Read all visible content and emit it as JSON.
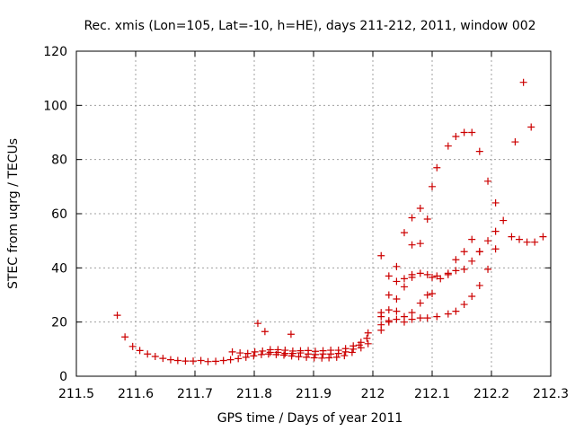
{
  "chart_data": {
    "type": "scatter",
    "title": "Rec. xmis (Lon=105, Lat=-10, h=HE), days 211-212, 2011, window 002",
    "xlabel": "GPS time / Days of year 2011",
    "ylabel": "STEC from uqrg / TECUs",
    "xlim": [
      211.5,
      212.3
    ],
    "ylim": [
      0,
      120
    ],
    "xticks": [
      "211.5",
      "211.6",
      "211.7",
      "211.8",
      "211.9",
      "212",
      "212.1",
      "212.2",
      "212.3"
    ],
    "yticks": [
      "0",
      "20",
      "40",
      "60",
      "80",
      "100",
      "120"
    ],
    "grid": true,
    "marker": "plus",
    "color": "#cc0000",
    "points": [
      [
        211.569,
        22.5
      ],
      [
        211.582,
        14.5
      ],
      [
        211.595,
        11
      ],
      [
        211.607,
        9.5
      ],
      [
        211.62,
        8.2
      ],
      [
        211.633,
        7.3
      ],
      [
        211.646,
        6.6
      ],
      [
        211.659,
        6.1
      ],
      [
        211.671,
        5.8
      ],
      [
        211.684,
        5.6
      ],
      [
        211.697,
        5.6
      ],
      [
        211.71,
        5.8
      ],
      [
        211.722,
        5.4
      ],
      [
        211.735,
        5.5
      ],
      [
        211.748,
        5.8
      ],
      [
        211.76,
        6.1
      ],
      [
        211.773,
        6.5
      ],
      [
        211.786,
        7.0
      ],
      [
        211.799,
        7.5
      ],
      [
        211.812,
        8.0
      ],
      [
        211.824,
        8.2
      ],
      [
        211.837,
        8.0
      ],
      [
        211.85,
        7.8
      ],
      [
        211.863,
        7.5
      ],
      [
        211.875,
        7.2
      ],
      [
        211.888,
        7.0
      ],
      [
        211.901,
        6.8
      ],
      [
        211.914,
        6.7
      ],
      [
        211.926,
        6.8
      ],
      [
        211.939,
        7.0
      ],
      [
        211.952,
        7.6
      ],
      [
        211.965,
        8.8
      ],
      [
        211.977,
        11.5
      ],
      [
        211.99,
        14.0
      ],
      [
        211.763,
        9.0
      ],
      [
        211.776,
        8.6
      ],
      [
        211.789,
        8.4
      ],
      [
        211.801,
        9.0
      ],
      [
        211.814,
        9.3
      ],
      [
        211.827,
        9.8
      ],
      [
        211.84,
        9.8
      ],
      [
        211.852,
        9.6
      ],
      [
        211.865,
        9.3
      ],
      [
        211.878,
        9.4
      ],
      [
        211.891,
        9.5
      ],
      [
        211.903,
        9.2
      ],
      [
        211.916,
        9.4
      ],
      [
        211.929,
        9.6
      ],
      [
        211.942,
        9.6
      ],
      [
        211.954,
        10.2
      ],
      [
        211.967,
        11.2
      ],
      [
        211.98,
        12.5
      ],
      [
        211.992,
        16.0
      ],
      [
        211.827,
        8.8
      ],
      [
        211.84,
        8.8
      ],
      [
        211.852,
        8.4
      ],
      [
        211.865,
        8.4
      ],
      [
        211.878,
        8.6
      ],
      [
        211.891,
        8.2
      ],
      [
        211.903,
        8.0
      ],
      [
        211.916,
        8.2
      ],
      [
        211.929,
        8.2
      ],
      [
        211.942,
        8.4
      ],
      [
        211.954,
        9.0
      ],
      [
        211.967,
        10.0
      ],
      [
        211.98,
        10.5
      ],
      [
        211.992,
        12.0
      ],
      [
        211.806,
        19.5
      ],
      [
        211.818,
        16.5
      ],
      [
        211.862,
        15.5
      ],
      [
        212.014,
        44.5
      ],
      [
        212.027,
        37.0
      ],
      [
        212.04,
        40.5
      ],
      [
        212.053,
        53.0
      ],
      [
        212.066,
        58.5
      ],
      [
        212.08,
        62.0
      ],
      [
        212.092,
        58.0
      ],
      [
        212.1,
        70.0
      ],
      [
        212.108,
        77.0
      ],
      [
        212.127,
        85.0
      ],
      [
        212.14,
        88.5
      ],
      [
        212.154,
        90.0
      ],
      [
        212.167,
        90.0
      ],
      [
        212.18,
        83.0
      ],
      [
        212.194,
        72.0
      ],
      [
        212.207,
        64.0
      ],
      [
        212.22,
        57.5
      ],
      [
        212.234,
        51.5
      ],
      [
        212.247,
        50.5
      ],
      [
        212.26,
        49.5
      ],
      [
        212.273,
        49.5
      ],
      [
        212.287,
        51.5
      ],
      [
        212.014,
        22.0
      ],
      [
        212.027,
        30.0
      ],
      [
        212.04,
        28.5
      ],
      [
        212.053,
        33.0
      ],
      [
        212.066,
        36.5
      ],
      [
        212.066,
        48.5
      ],
      [
        212.08,
        49.0
      ],
      [
        212.092,
        37.5
      ],
      [
        212.1,
        36.5
      ],
      [
        212.108,
        37.0
      ],
      [
        212.127,
        38.0
      ],
      [
        212.14,
        43.0
      ],
      [
        212.154,
        46.0
      ],
      [
        212.167,
        50.5
      ],
      [
        212.18,
        46.0
      ],
      [
        212.194,
        50.0
      ],
      [
        212.207,
        53.5
      ],
      [
        212.014,
        17.0
      ],
      [
        212.027,
        20.0
      ],
      [
        212.04,
        21.0
      ],
      [
        212.053,
        22.0
      ],
      [
        212.066,
        23.5
      ],
      [
        212.08,
        27.0
      ],
      [
        212.092,
        30.0
      ],
      [
        212.1,
        30.5
      ],
      [
        212.114,
        36.0
      ],
      [
        212.127,
        37.5
      ],
      [
        212.14,
        39.0
      ],
      [
        212.154,
        39.5
      ],
      [
        212.167,
        42.5
      ],
      [
        212.18,
        46.0
      ],
      [
        212.194,
        39.5
      ],
      [
        212.207,
        47.0
      ],
      [
        212.014,
        23.5
      ],
      [
        212.027,
        24.5
      ],
      [
        212.04,
        24.0
      ],
      [
        212.053,
        20.0
      ],
      [
        212.066,
        21.0
      ],
      [
        212.08,
        21.5
      ],
      [
        212.092,
        21.5
      ],
      [
        212.108,
        22.0
      ],
      [
        212.127,
        23.0
      ],
      [
        212.14,
        24.0
      ],
      [
        212.154,
        26.5
      ],
      [
        212.167,
        29.5
      ],
      [
        212.18,
        33.5
      ],
      [
        212.014,
        19.0
      ],
      [
        212.027,
        20.5
      ],
      [
        212.04,
        35.0
      ],
      [
        212.053,
        36.0
      ],
      [
        212.066,
        37.5
      ],
      [
        212.08,
        38.0
      ],
      [
        212.24,
        86.5
      ],
      [
        212.254,
        108.5
      ],
      [
        212.267,
        92.0
      ]
    ]
  }
}
